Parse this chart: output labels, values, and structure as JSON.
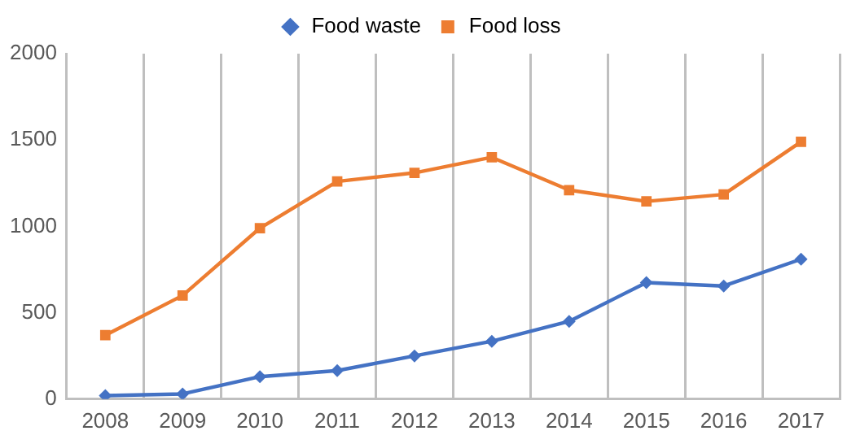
{
  "chart_data": {
    "type": "line",
    "categories": [
      "2008",
      "2009",
      "2010",
      "2011",
      "2012",
      "2013",
      "2014",
      "2015",
      "2016",
      "2017"
    ],
    "series": [
      {
        "name": "Food waste",
        "color": "#4472c4",
        "marker": "diamond",
        "values": [
          20,
          30,
          130,
          165,
          250,
          335,
          450,
          675,
          655,
          810
        ]
      },
      {
        "name": "Food loss",
        "color": "#ed7d31",
        "marker": "square",
        "values": [
          370,
          600,
          990,
          1260,
          1310,
          1400,
          1210,
          1145,
          1185,
          1490
        ]
      }
    ],
    "ylim": [
      0,
      2000
    ],
    "yticks": [
      0,
      500,
      1000,
      1500,
      2000
    ],
    "grid": "x",
    "legend": "top",
    "line_style": "solid"
  }
}
